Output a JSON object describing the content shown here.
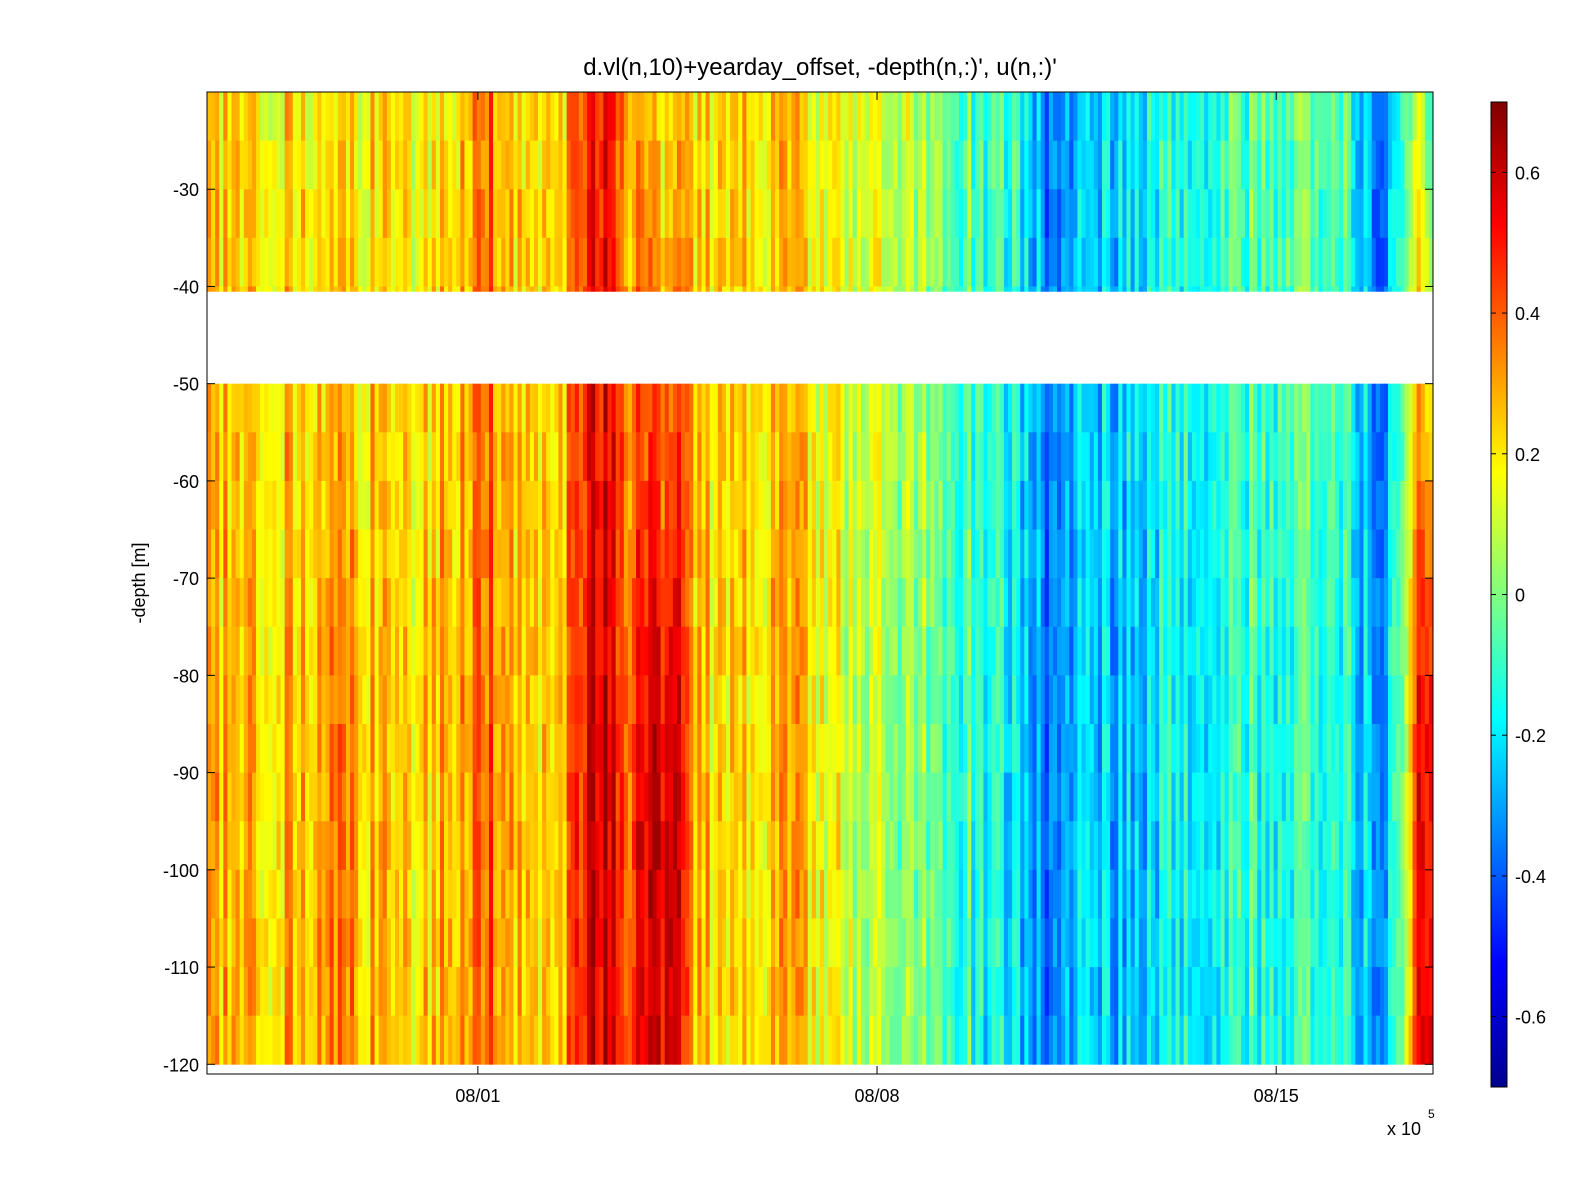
{
  "chart_data": {
    "type": "heatmap",
    "title": "d.vl(n,10)+yearday_offset, -depth(n,:)', u(n,:)'",
    "xlabel": "",
    "ylabel": "-depth [m]",
    "x_ticks": [
      "08/01",
      "08/08",
      "08/15"
    ],
    "x_multiplier_text": "x 10",
    "x_multiplier_exponent": "5",
    "xlim_days_rel_0801": [
      -4.75,
      16.75
    ],
    "ylim": [
      -121,
      -20
    ],
    "y_ticks": [
      -30,
      -40,
      -50,
      -60,
      -70,
      -80,
      -90,
      -100,
      -110,
      -120
    ],
    "colorbar": {
      "colormap": "jet",
      "clim": [
        -0.7,
        0.7
      ],
      "ticks": [
        0.6,
        0.4,
        0.2,
        0,
        -0.2,
        -0.4,
        -0.6
      ]
    },
    "depth_bins_top_to_bottom": [
      -20,
      -25,
      -30,
      -35,
      -40,
      -45,
      -50,
      -55,
      -60,
      -65,
      -70,
      -75,
      -80,
      -85,
      -90,
      -95,
      -100,
      -105,
      -110,
      -115
    ],
    "gap_depth_range": [
      -45.5,
      -40.5
    ],
    "u_profile_by_day_rel_0801": [
      {
        "day": -4.75,
        "u_upper": 0.25,
        "u_lower": 0.3
      },
      {
        "day": -4.0,
        "u_upper": 0.22,
        "u_lower": 0.25
      },
      {
        "day": -3.0,
        "u_upper": 0.22,
        "u_lower": 0.3
      },
      {
        "day": -2.5,
        "u_upper": 0.2,
        "u_lower": 0.35
      },
      {
        "day": -1.5,
        "u_upper": 0.2,
        "u_lower": 0.22
      },
      {
        "day": -0.5,
        "u_upper": 0.2,
        "u_lower": 0.28
      },
      {
        "day": 0.2,
        "u_upper": 0.42,
        "u_lower": 0.42
      },
      {
        "day": 0.8,
        "u_upper": 0.18,
        "u_lower": 0.22
      },
      {
        "day": 1.5,
        "u_upper": 0.25,
        "u_lower": 0.28
      },
      {
        "day": 1.95,
        "u_upper": 0.5,
        "u_lower": 0.6
      },
      {
        "day": 2.25,
        "u_upper": 0.5,
        "u_lower": 0.55
      },
      {
        "day": 2.6,
        "u_upper": 0.28,
        "u_lower": 0.4
      },
      {
        "day": 3.0,
        "u_upper": 0.22,
        "u_lower": 0.55
      },
      {
        "day": 3.4,
        "u_upper": 0.2,
        "u_lower": 0.62
      },
      {
        "day": 3.8,
        "u_upper": 0.2,
        "u_lower": 0.25
      },
      {
        "day": 4.5,
        "u_upper": 0.2,
        "u_lower": 0.18
      },
      {
        "day": 5.5,
        "u_upper": 0.22,
        "u_lower": 0.28
      },
      {
        "day": 6.5,
        "u_upper": 0.15,
        "u_lower": 0.1
      },
      {
        "day": 7.5,
        "u_upper": 0.1,
        "u_lower": 0.02
      },
      {
        "day": 8.5,
        "u_upper": -0.02,
        "u_lower": -0.08
      },
      {
        "day": 9.5,
        "u_upper": -0.15,
        "u_lower": -0.25
      },
      {
        "day": 10.0,
        "u_upper": -0.32,
        "u_lower": -0.32
      },
      {
        "day": 10.6,
        "u_upper": -0.25,
        "u_lower": -0.22
      },
      {
        "day": 11.4,
        "u_upper": -0.2,
        "u_lower": -0.25
      },
      {
        "day": 12.4,
        "u_upper": -0.1,
        "u_lower": -0.15
      },
      {
        "day": 13.4,
        "u_upper": -0.05,
        "u_lower": -0.12
      },
      {
        "day": 14.4,
        "u_upper": 0.0,
        "u_lower": -0.1
      },
      {
        "day": 15.2,
        "u_upper": -0.08,
        "u_lower": -0.15
      },
      {
        "day": 15.8,
        "u_upper": -0.38,
        "u_lower": -0.3
      },
      {
        "day": 16.2,
        "u_upper": -0.2,
        "u_lower": -0.12
      },
      {
        "day": 16.5,
        "u_upper": 0.1,
        "u_lower": 0.5
      },
      {
        "day": 16.75,
        "u_upper": 0.0,
        "u_lower": 0.65
      }
    ]
  }
}
